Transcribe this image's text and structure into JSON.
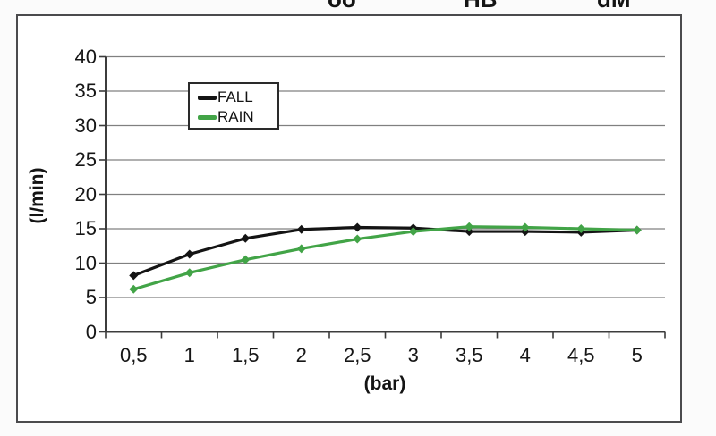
{
  "header_fragments": [
    {
      "text": "öö"
    },
    {
      "text": "HB"
    },
    {
      "text": "dM"
    }
  ],
  "chart_data": {
    "type": "line",
    "title": "",
    "xlabel": "(bar)",
    "ylabel": "(l/min)",
    "categories": [
      "0,5",
      "1",
      "1,5",
      "2",
      "2,5",
      "3",
      "3,5",
      "4",
      "4,5",
      "5"
    ],
    "x_values": [
      0.5,
      1,
      1.5,
      2,
      2.5,
      3,
      3.5,
      4,
      4.5,
      5
    ],
    "series": [
      {
        "name": "FALL",
        "color": "#141414",
        "values": [
          8.2,
          11.3,
          13.6,
          14.9,
          15.2,
          15.1,
          14.6,
          14.6,
          14.5,
          14.8
        ]
      },
      {
        "name": "RAIN",
        "color": "#42a447",
        "values": [
          6.2,
          8.6,
          10.5,
          12.1,
          13.5,
          14.6,
          15.3,
          15.2,
          15.0,
          14.8
        ]
      }
    ],
    "ylim": [
      0,
      40
    ],
    "yticks": [
      0,
      5,
      10,
      15,
      20,
      25,
      30,
      35,
      40
    ],
    "grid": true,
    "gridline_color": "#808080",
    "axis_color": "#3c3c3c",
    "legend_position": "top-left-inside",
    "decimal_separator": ","
  }
}
